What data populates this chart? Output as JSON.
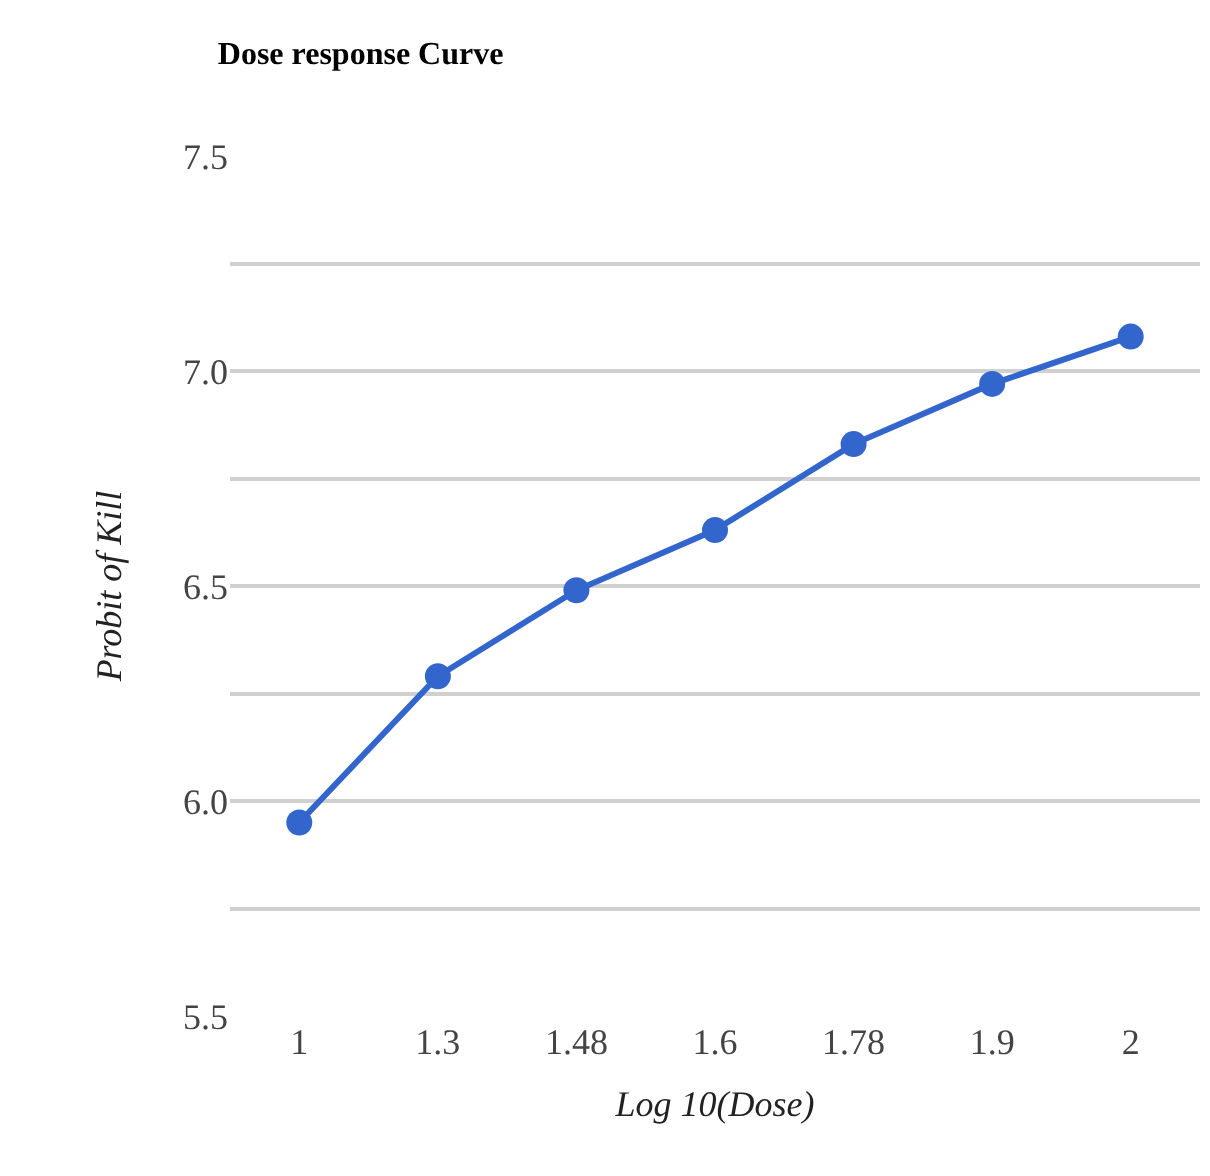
{
  "chart_data": {
    "type": "line",
    "title": "Dose response Curve",
    "xlabel": "Log 10(Dose)",
    "ylabel": "Probit of Kill",
    "categories": [
      "1",
      "1.3",
      "1.48",
      "1.6",
      "1.78",
      "1.9",
      "2"
    ],
    "series": [
      {
        "color": "#3366cc",
        "values": [
          5.95,
          6.29,
          6.49,
          6.63,
          6.83,
          6.97,
          7.08
        ]
      }
    ],
    "ylim": [
      5.5,
      7.5
    ],
    "yticks": [
      {
        "value": 5.5,
        "label": "5.5"
      },
      {
        "value": 5.75,
        "label": null
      },
      {
        "value": 6.0,
        "label": "6.0"
      },
      {
        "value": 6.25,
        "label": null
      },
      {
        "value": 6.5,
        "label": "6.5"
      },
      {
        "value": 6.75,
        "label": null
      },
      {
        "value": 7.0,
        "label": "7.0"
      },
      {
        "value": 7.25,
        "label": null
      },
      {
        "value": 7.5,
        "label": "7.5"
      }
    ],
    "grid": "y",
    "marker": "circle",
    "line_style": "solid",
    "legend": false
  }
}
